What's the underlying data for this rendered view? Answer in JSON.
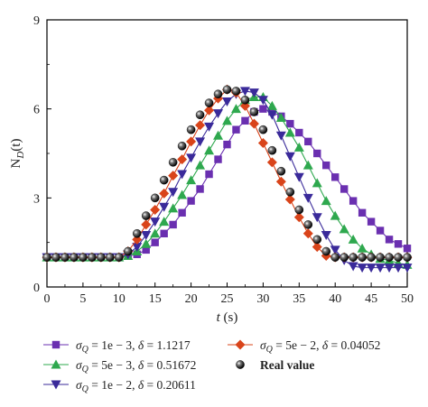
{
  "chart_data": {
    "type": "line",
    "xlabel_italic": "t",
    "xlabel_unit": " (s)",
    "ylabel_main": "N",
    "ylabel_sub": "D",
    "ylabel_arg": "(t)",
    "xlim": [
      0,
      50
    ],
    "ylim": [
      0,
      9
    ],
    "xticks": [
      0,
      5,
      10,
      15,
      20,
      25,
      30,
      35,
      40,
      45,
      50
    ],
    "yticks": [
      0,
      3,
      6,
      9
    ],
    "grid": false,
    "legend_position": "bottom",
    "x": [
      0,
      1.25,
      2.5,
      3.75,
      5,
      6.25,
      7.5,
      8.75,
      10,
      11.25,
      12.5,
      13.75,
      15,
      16.25,
      17.5,
      18.75,
      20,
      21.25,
      22.5,
      23.75,
      25,
      26.25,
      27.5,
      28.75,
      30,
      31.25,
      32.5,
      33.75,
      35,
      36.25,
      37.5,
      38.75,
      40,
      41.25,
      42.5,
      43.75,
      45,
      46.25,
      47.5,
      48.75,
      50
    ],
    "series": [
      {
        "name_sym": "σ",
        "name_sub": "Q",
        "name_rest": " = 1e − 3, ",
        "name_delta": "δ",
        "name_val": " = 1.1217",
        "color": "#6a2fb0",
        "marker": "square",
        "values": [
          1.0,
          1.0,
          1.0,
          1.0,
          1.0,
          1.0,
          1.0,
          1.0,
          1.0,
          1.05,
          1.1,
          1.25,
          1.5,
          1.8,
          2.1,
          2.5,
          2.9,
          3.3,
          3.8,
          4.3,
          4.8,
          5.3,
          5.6,
          5.9,
          6.0,
          5.9,
          5.75,
          5.5,
          5.2,
          4.9,
          4.5,
          4.1,
          3.7,
          3.3,
          2.9,
          2.5,
          2.2,
          1.9,
          1.6,
          1.45,
          1.3
        ]
      },
      {
        "name_sym": "σ",
        "name_sub": "Q",
        "name_rest": " = 5e − 3, ",
        "name_delta": "δ",
        "name_val": " = 0.51672",
        "color": "#2ea84e",
        "marker": "triangle-up",
        "values": [
          1.0,
          1.0,
          1.0,
          1.0,
          1.0,
          1.0,
          1.0,
          1.0,
          1.0,
          1.05,
          1.2,
          1.45,
          1.8,
          2.2,
          2.65,
          3.1,
          3.6,
          4.1,
          4.6,
          5.1,
          5.6,
          6.0,
          6.3,
          6.4,
          6.4,
          6.1,
          5.7,
          5.2,
          4.7,
          4.1,
          3.5,
          2.9,
          2.4,
          1.95,
          1.6,
          1.3,
          1.1,
          0.95,
          0.9,
          0.8,
          0.75
        ]
      },
      {
        "name_sym": "σ",
        "name_sub": "Q",
        "name_rest": " = 1e − 2, ",
        "name_delta": "δ",
        "name_val": " = 0.20611",
        "color": "#3a2a9a",
        "marker": "triangle-down",
        "values": [
          1.0,
          1.0,
          1.0,
          1.0,
          1.0,
          1.0,
          1.0,
          1.0,
          1.0,
          1.1,
          1.35,
          1.75,
          2.2,
          2.7,
          3.2,
          3.8,
          4.35,
          4.9,
          5.4,
          5.85,
          6.25,
          6.5,
          6.6,
          6.55,
          6.3,
          5.8,
          5.1,
          4.4,
          3.7,
          3.0,
          2.35,
          1.75,
          1.25,
          0.9,
          0.7,
          0.65,
          0.65,
          0.65,
          0.65,
          0.65,
          0.65
        ]
      },
      {
        "name_sym": "σ",
        "name_sub": "Q",
        "name_rest": " = 5e − 2, ",
        "name_delta": "δ",
        "name_val": " = 0.04052",
        "color": "#d9441a",
        "marker": "diamond",
        "values": [
          1.0,
          1.0,
          1.0,
          1.0,
          1.0,
          1.0,
          1.0,
          1.0,
          1.0,
          1.2,
          1.6,
          2.1,
          2.6,
          3.15,
          3.75,
          4.3,
          4.9,
          5.45,
          5.95,
          6.35,
          6.65,
          6.55,
          6.1,
          5.5,
          4.85,
          4.2,
          3.55,
          2.95,
          2.35,
          1.8,
          1.35,
          1.05,
          1.0,
          1.0,
          1.0,
          1.0,
          1.0,
          1.0,
          1.0,
          1.0,
          1.0
        ]
      },
      {
        "name": "Real value",
        "color": "#111111",
        "marker": "ball",
        "values": [
          1.0,
          1.0,
          1.0,
          1.0,
          1.0,
          1.0,
          1.0,
          1.0,
          1.0,
          1.2,
          1.8,
          2.4,
          3.0,
          3.6,
          4.2,
          4.75,
          5.3,
          5.8,
          6.2,
          6.5,
          6.65,
          6.6,
          6.3,
          5.9,
          5.3,
          4.6,
          3.9,
          3.2,
          2.6,
          2.1,
          1.6,
          1.2,
          1.0,
          1.0,
          1.0,
          1.0,
          1.0,
          1.0,
          1.0,
          1.0,
          1.0
        ]
      }
    ],
    "legend_order": [
      0,
      3,
      1,
      4,
      2
    ]
  }
}
